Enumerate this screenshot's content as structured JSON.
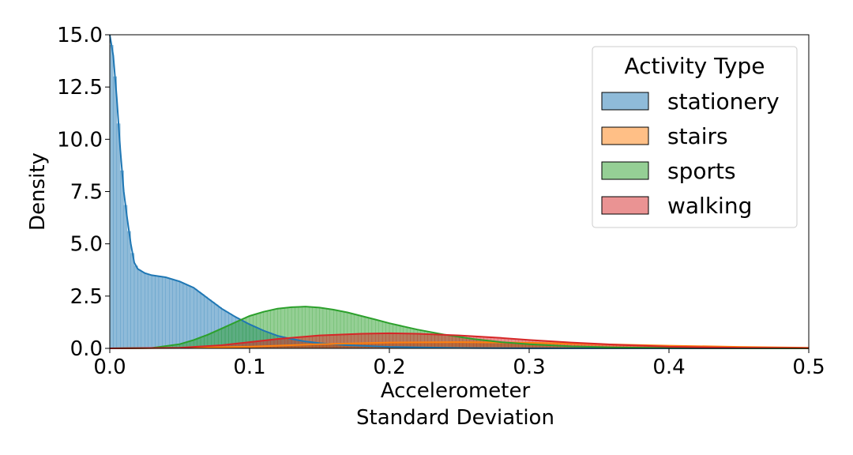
{
  "chart_data": {
    "type": "histogram",
    "xlabel": [
      "Accelerometer",
      "Standard Deviation"
    ],
    "ylabel": "Density",
    "xlim": [
      0.0,
      0.5
    ],
    "ylim": [
      0.0,
      15.0
    ],
    "xticks": [
      "0.0",
      "0.1",
      "0.2",
      "0.3",
      "0.4",
      "0.5"
    ],
    "yticks": [
      "0.0",
      "2.5",
      "5.0",
      "7.5",
      "10.0",
      "12.5",
      "15.0"
    ],
    "grid": false,
    "legend": {
      "title": "Activity Type",
      "placement": "top-right"
    },
    "series": [
      {
        "name": "stationery",
        "color": "#1f77b4",
        "kde": [
          [
            0.0,
            15.0
          ],
          [
            0.0025,
            14.0
          ],
          [
            0.005,
            12.0
          ],
          [
            0.0075,
            9.5
          ],
          [
            0.01,
            7.5
          ],
          [
            0.0125,
            6.2
          ],
          [
            0.015,
            5.0
          ],
          [
            0.0175,
            4.1
          ],
          [
            0.02,
            3.8
          ],
          [
            0.025,
            3.6
          ],
          [
            0.03,
            3.5
          ],
          [
            0.04,
            3.4
          ],
          [
            0.05,
            3.2
          ],
          [
            0.06,
            2.9
          ],
          [
            0.07,
            2.4
          ],
          [
            0.08,
            1.9
          ],
          [
            0.09,
            1.5
          ],
          [
            0.1,
            1.15
          ],
          [
            0.11,
            0.85
          ],
          [
            0.12,
            0.6
          ],
          [
            0.13,
            0.45
          ],
          [
            0.14,
            0.33
          ],
          [
            0.15,
            0.25
          ],
          [
            0.17,
            0.15
          ],
          [
            0.2,
            0.07
          ],
          [
            0.25,
            0.02
          ],
          [
            0.3,
            0.005
          ],
          [
            0.5,
            0.0
          ]
        ]
      },
      {
        "name": "stairs",
        "color": "#ff7f0e",
        "kde": [
          [
            0.0,
            0.0
          ],
          [
            0.05,
            0.02
          ],
          [
            0.1,
            0.08
          ],
          [
            0.15,
            0.2
          ],
          [
            0.2,
            0.28
          ],
          [
            0.25,
            0.3
          ],
          [
            0.3,
            0.27
          ],
          [
            0.35,
            0.2
          ],
          [
            0.4,
            0.13
          ],
          [
            0.45,
            0.07
          ],
          [
            0.5,
            0.03
          ]
        ]
      },
      {
        "name": "sports",
        "color": "#2ca02c",
        "kde": [
          [
            0.0,
            0.0
          ],
          [
            0.03,
            0.02
          ],
          [
            0.05,
            0.2
          ],
          [
            0.06,
            0.4
          ],
          [
            0.07,
            0.65
          ],
          [
            0.08,
            0.95
          ],
          [
            0.09,
            1.25
          ],
          [
            0.1,
            1.55
          ],
          [
            0.11,
            1.75
          ],
          [
            0.12,
            1.9
          ],
          [
            0.13,
            1.97
          ],
          [
            0.14,
            2.0
          ],
          [
            0.15,
            1.95
          ],
          [
            0.16,
            1.85
          ],
          [
            0.17,
            1.72
          ],
          [
            0.18,
            1.55
          ],
          [
            0.19,
            1.38
          ],
          [
            0.2,
            1.2
          ],
          [
            0.22,
            0.9
          ],
          [
            0.24,
            0.65
          ],
          [
            0.26,
            0.45
          ],
          [
            0.28,
            0.3
          ],
          [
            0.3,
            0.2
          ],
          [
            0.33,
            0.1
          ],
          [
            0.36,
            0.05
          ],
          [
            0.4,
            0.02
          ],
          [
            0.5,
            0.0
          ]
        ]
      },
      {
        "name": "walking",
        "color": "#d62728",
        "kde": [
          [
            0.0,
            0.0
          ],
          [
            0.05,
            0.03
          ],
          [
            0.08,
            0.15
          ],
          [
            0.1,
            0.3
          ],
          [
            0.12,
            0.45
          ],
          [
            0.15,
            0.62
          ],
          [
            0.18,
            0.7
          ],
          [
            0.2,
            0.72
          ],
          [
            0.22,
            0.7
          ],
          [
            0.25,
            0.62
          ],
          [
            0.28,
            0.5
          ],
          [
            0.3,
            0.4
          ],
          [
            0.33,
            0.28
          ],
          [
            0.36,
            0.18
          ],
          [
            0.4,
            0.08
          ],
          [
            0.45,
            0.03
          ],
          [
            0.5,
            0.01
          ]
        ]
      }
    ]
  }
}
